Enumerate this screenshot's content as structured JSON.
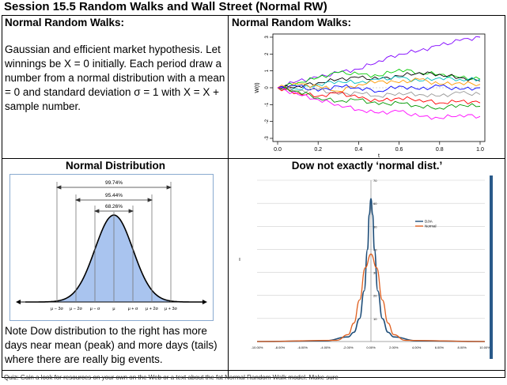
{
  "title": "Session 15.5 Random Walks and Wall Street (Normal RW)",
  "top_left": {
    "heading": "Normal Random Walks:",
    "text": "Gaussian and efficient market hypothesis. Let winnings be X = 0 initially. Each period draw a number from a normal distribution with a mean = 0 and standard deviation σ = 1 with X = X + sample number."
  },
  "top_right": {
    "heading": "Normal Random Walks:",
    "chart_data": {
      "type": "line",
      "xlabel": "t",
      "ylabel": "W(t)",
      "xlim": [
        0,
        1
      ],
      "ylim": [
        -3,
        3
      ],
      "xticks": [
        "0.0",
        "0.2",
        "0.4",
        "0.6",
        "0.8",
        "1.0"
      ],
      "yticks": [
        "-3",
        "-2",
        "-1",
        "0",
        "1",
        "2",
        "3"
      ],
      "x": [
        0,
        0.1,
        0.2,
        0.3,
        0.4,
        0.5,
        0.6,
        0.7,
        0.8,
        0.9,
        1.0
      ],
      "series": [
        {
          "color": "#7f00ff",
          "values": [
            0,
            0.4,
            0.6,
            0.9,
            1.1,
            1.6,
            2.0,
            2.2,
            2.5,
            2.8,
            3.0
          ]
        },
        {
          "color": "#00cc00",
          "values": [
            0,
            0.3,
            0.6,
            0.9,
            0.8,
            0.7,
            1.1,
            0.9,
            0.8,
            0.6,
            0.5
          ]
        },
        {
          "color": "#000000",
          "values": [
            0,
            0.1,
            0.3,
            0.5,
            0.6,
            0.5,
            0.7,
            0.9,
            0.8,
            0.6,
            0.4
          ]
        },
        {
          "color": "#00bfbf",
          "values": [
            0,
            -0.1,
            0.2,
            0.4,
            0.3,
            0.5,
            0.6,
            0.4,
            0.6,
            0.5,
            0.5
          ]
        },
        {
          "color": "#ff9900",
          "values": [
            0,
            0.2,
            0.1,
            -0.2,
            0.2,
            0.4,
            0.3,
            0.5,
            0.2,
            0.3,
            0.2
          ]
        },
        {
          "color": "#0000ff",
          "values": [
            0,
            0.1,
            -0.2,
            0.1,
            0.0,
            -0.2,
            0.1,
            -0.1,
            0.1,
            -0.1,
            0.0
          ]
        },
        {
          "color": "#999999",
          "values": [
            0,
            -0.2,
            -0.1,
            -0.4,
            -0.3,
            -0.5,
            -0.3,
            -0.4,
            -0.5,
            -0.3,
            -0.4
          ]
        },
        {
          "color": "#ff0000",
          "values": [
            0,
            -0.3,
            -0.5,
            -0.3,
            -0.6,
            -0.8,
            -0.6,
            -0.7,
            -0.9,
            -0.8,
            -0.9
          ]
        },
        {
          "color": "#009900",
          "values": [
            0,
            -0.2,
            -0.6,
            -0.8,
            -0.7,
            -1.0,
            -0.9,
            -1.1,
            -1.2,
            -1.0,
            -1.1
          ]
        },
        {
          "color": "#ff00ff",
          "values": [
            0,
            -0.4,
            -0.7,
            -1.0,
            -1.3,
            -1.5,
            -1.4,
            -1.7,
            -1.8,
            -1.6,
            -1.7
          ]
        }
      ]
    }
  },
  "bottom_left": {
    "heading": "Normal Distribution",
    "labels": {
      "p9974": "99.74%",
      "p9544": "95.44%",
      "p6826": "68.26%"
    },
    "axis_ticks": [
      "μ − 3σ",
      "μ − 2σ",
      "μ − σ",
      "μ",
      "μ + σ",
      "μ + 2σ",
      "μ + 3σ"
    ],
    "note": "Note Dow distribution to the right has more days near mean (peak) and more days (tails) where there are really big events."
  },
  "bottom_right": {
    "heading": "Dow not exactly ‘normal dist.’",
    "chart_data": {
      "type": "line",
      "x_ticks": [
        "-10.00%",
        "-8.00%",
        "-6.00%",
        "-4.00%",
        "-2.00%",
        "0.00%",
        "2.00%",
        "4.00%",
        "6.00%",
        "8.00%",
        "10.00%"
      ],
      "y_ticks": [
        "10",
        "20",
        "30",
        "40",
        "50",
        "60",
        "70"
      ],
      "ylim": [
        0,
        70
      ],
      "xlim": [
        -10,
        10
      ],
      "series": [
        {
          "name": "DJIA",
          "color": "#1f4e79",
          "x": [
            -10,
            -4,
            -2,
            -1.5,
            -1,
            -0.6,
            -0.3,
            -0.15,
            0,
            0.15,
            0.3,
            0.6,
            1,
            1.5,
            2,
            4,
            10
          ],
          "values": [
            0,
            0.3,
            2,
            4,
            10,
            22,
            40,
            55,
            62,
            55,
            40,
            22,
            10,
            4,
            2,
            0.3,
            0
          ]
        },
        {
          "name": "Normal",
          "color": "#e06020",
          "x": [
            -10,
            -3,
            -2,
            -1.5,
            -1,
            -0.5,
            0,
            0.5,
            1,
            1.5,
            2,
            3,
            10
          ],
          "values": [
            0,
            0.5,
            3,
            8,
            18,
            32,
            38,
            32,
            18,
            8,
            3,
            0.5,
            0
          ]
        }
      ]
    }
  },
  "footer_note": "Quiz: Gain a look for resources on your own on the Web or a text about the fat Normal Random Walk model. Make sure"
}
